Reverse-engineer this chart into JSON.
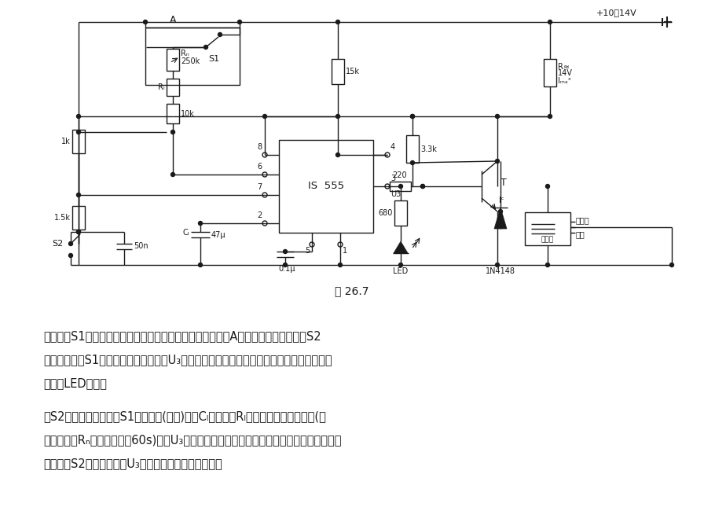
{
  "fig_width": 8.96,
  "fig_height": 6.64,
  "dpi": 100,
  "bg_color": "#ffffff",
  "lc": "#1a1a1a",
  "lw": 1.0,
  "caption": "图 26.7",
  "p1l1": "　电路中S1是门控光电开关或行李间光控开关。在其闭合时A点为正工作电压。如果S2",
  "p1l2": "闭合，则不管S1闭合与否，输出端电压U₃均为高电平，晶体管不导通，继电器不吸合，发光",
  "p1l3": "二极管LED不亮。",
  "p2l1": "　S2为常开触点，如果S1是闭合的(门开)，则Cₗ开始通过Rₗ缓慢充电。在一定时间(可",
  "p2l2": "通过电位器Rₙ调节，不超过60s)内，U₃突然变低电平，于是继电器接通，报警器工作。如果",
  "p2l3": "在报警时S2是闭合的，则U₃又为高电平，继电器释放。"
}
